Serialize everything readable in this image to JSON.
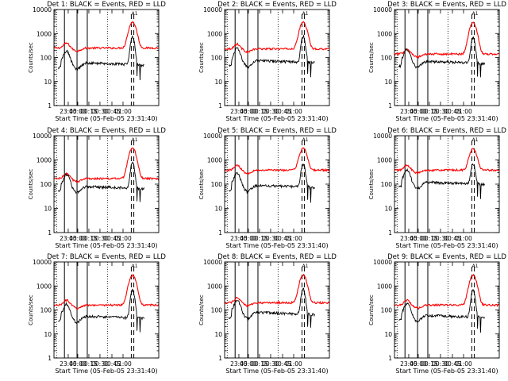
{
  "colors": {
    "events": "#000000",
    "lld": "#ff0000",
    "background": "#ffffff"
  },
  "chart_data": [
    {
      "type": "line",
      "title": "Det  1: BLACK = Events, RED = LLD",
      "xlabel": "Start Time (05-Feb-05 23:31:40)",
      "ylabel": "Counts/sec",
      "yscale": "log",
      "ylim": [
        1,
        10000
      ],
      "yticks": [
        "1",
        "10",
        "100",
        "1000",
        "10000"
      ],
      "xticks": [
        "23:45",
        "00:00",
        "00:15",
        "00:30",
        "00:45",
        "01:00"
      ],
      "flag_label": "A1",
      "series": [
        {
          "name": "BLACK = Events",
          "color": "#000000",
          "base": 60,
          "peak": 900
        },
        {
          "name": "RED = LLD",
          "color": "#ff0000",
          "base": 250,
          "peak": 3000
        }
      ]
    },
    {
      "type": "line",
      "title": "Det  2: BLACK = Events, RED = LLD",
      "xlabel": "Start Time (05-Feb-05 23:31:40)",
      "ylabel": "Counts/sec",
      "yscale": "log",
      "ylim": [
        1,
        10000
      ],
      "yticks": [
        "1",
        "10",
        "100",
        "1000",
        "10000"
      ],
      "xticks": [
        "23:45",
        "00:00",
        "00:15",
        "00:30",
        "00:45",
        "01:00"
      ],
      "flag_label": "A1",
      "series": [
        {
          "name": "BLACK = Events",
          "color": "#000000",
          "base": 75,
          "peak": 900
        },
        {
          "name": "RED = LLD",
          "color": "#ff0000",
          "base": 230,
          "peak": 3000
        }
      ]
    },
    {
      "type": "line",
      "title": "Det  3: BLACK = Events, RED = LLD",
      "xlabel": "Start Time (05-Feb-05 23:31:40)",
      "ylabel": "Counts/sec",
      "yscale": "log",
      "ylim": [
        1,
        10000
      ],
      "yticks": [
        "1",
        "10",
        "100",
        "1000",
        "10000"
      ],
      "xticks": [
        "23:45",
        "00:00",
        "00:15",
        "00:30",
        "00:45",
        "01:00"
      ],
      "flag_label": "A1",
      "series": [
        {
          "name": "BLACK = Events",
          "color": "#000000",
          "base": 70,
          "peak": 800
        },
        {
          "name": "RED = LLD",
          "color": "#ff0000",
          "base": 140,
          "peak": 2800
        }
      ]
    },
    {
      "type": "line",
      "title": "Det  4: BLACK = Events, RED = LLD",
      "xlabel": "Start Time (05-Feb-05 23:31:40)",
      "ylabel": "Counts/sec",
      "yscale": "log",
      "ylim": [
        1,
        10000
      ],
      "yticks": [
        "1",
        "10",
        "100",
        "1000",
        "10000"
      ],
      "xticks": [
        "23:45",
        "00:00",
        "00:15",
        "00:30",
        "00:45",
        "01:00"
      ],
      "flag_label": "A1",
      "series": [
        {
          "name": "BLACK = Events",
          "color": "#000000",
          "base": 80,
          "peak": 900
        },
        {
          "name": "RED = LLD",
          "color": "#ff0000",
          "base": 170,
          "peak": 3000
        }
      ]
    },
    {
      "type": "line",
      "title": "Det  5: BLACK = Events, RED = LLD",
      "xlabel": "Start Time (05-Feb-05 23:31:40)",
      "ylabel": "Counts/sec",
      "yscale": "log",
      "ylim": [
        1,
        10000
      ],
      "yticks": [
        "1",
        "10",
        "100",
        "1000",
        "10000"
      ],
      "xticks": [
        "23:45",
        "00:00",
        "00:15",
        "00:30",
        "00:45",
        "01:00"
      ],
      "flag_label": "A1",
      "series": [
        {
          "name": "BLACK = Events",
          "color": "#000000",
          "base": 90,
          "peak": 800
        },
        {
          "name": "RED = LLD",
          "color": "#ff0000",
          "base": 380,
          "peak": 3000
        }
      ]
    },
    {
      "type": "line",
      "title": "Det  6: BLACK = Events, RED = LLD",
      "xlabel": "Start Time (05-Feb-05 23:31:40)",
      "ylabel": "Counts/sec",
      "yscale": "log",
      "ylim": [
        1,
        10000
      ],
      "yticks": [
        "1",
        "10",
        "100",
        "1000",
        "10000"
      ],
      "xticks": [
        "23:45",
        "00:00",
        "00:15",
        "00:30",
        "00:45",
        "01:00"
      ],
      "flag_label": "A1",
      "series": [
        {
          "name": "BLACK = Events",
          "color": "#000000",
          "base": 120,
          "peak": 800
        },
        {
          "name": "RED = LLD",
          "color": "#ff0000",
          "base": 380,
          "peak": 2800
        }
      ]
    },
    {
      "type": "line",
      "title": "Det  7: BLACK = Events, RED = LLD",
      "xlabel": "Start Time (05-Feb-05 23:31:40)",
      "ylabel": "Counts/sec",
      "yscale": "log",
      "ylim": [
        1,
        10000
      ],
      "yticks": [
        "1",
        "10",
        "100",
        "1000",
        "10000"
      ],
      "xticks": [
        "23:45",
        "00:00",
        "00:15",
        "00:30",
        "00:45",
        "01:00"
      ],
      "flag_label": "A1",
      "series": [
        {
          "name": "BLACK = Events",
          "color": "#000000",
          "base": 55,
          "peak": 800
        },
        {
          "name": "RED = LLD",
          "color": "#ff0000",
          "base": 160,
          "peak": 2800
        }
      ]
    },
    {
      "type": "line",
      "title": "Det  8: BLACK = Events, RED = LLD",
      "xlabel": "Start Time (05-Feb-05 23:31:40)",
      "ylabel": "Counts/sec",
      "yscale": "log",
      "ylim": [
        1,
        10000
      ],
      "yticks": [
        "1",
        "10",
        "100",
        "1000",
        "10000"
      ],
      "xticks": [
        "23:45",
        "00:00",
        "00:15",
        "00:30",
        "00:45",
        "01:00"
      ],
      "flag_label": "A1",
      "series": [
        {
          "name": "BLACK = Events",
          "color": "#000000",
          "base": 80,
          "peak": 900
        },
        {
          "name": "RED = LLD",
          "color": "#ff0000",
          "base": 200,
          "peak": 2800
        }
      ]
    },
    {
      "type": "line",
      "title": "Det  9: BLACK = Events, RED = LLD",
      "xlabel": "Start Time (05-Feb-05 23:31:40)",
      "ylabel": "Counts/sec",
      "yscale": "log",
      "ylim": [
        1,
        10000
      ],
      "yticks": [
        "1",
        "10",
        "100",
        "1000",
        "10000"
      ],
      "xticks": [
        "23:45",
        "00:00",
        "00:15",
        "00:30",
        "00:45",
        "01:00"
      ],
      "flag_label": "A1",
      "series": [
        {
          "name": "BLACK = Events",
          "color": "#000000",
          "base": 60,
          "peak": 800
        },
        {
          "name": "RED = LLD",
          "color": "#ff0000",
          "base": 160,
          "peak": 2800
        }
      ]
    }
  ]
}
